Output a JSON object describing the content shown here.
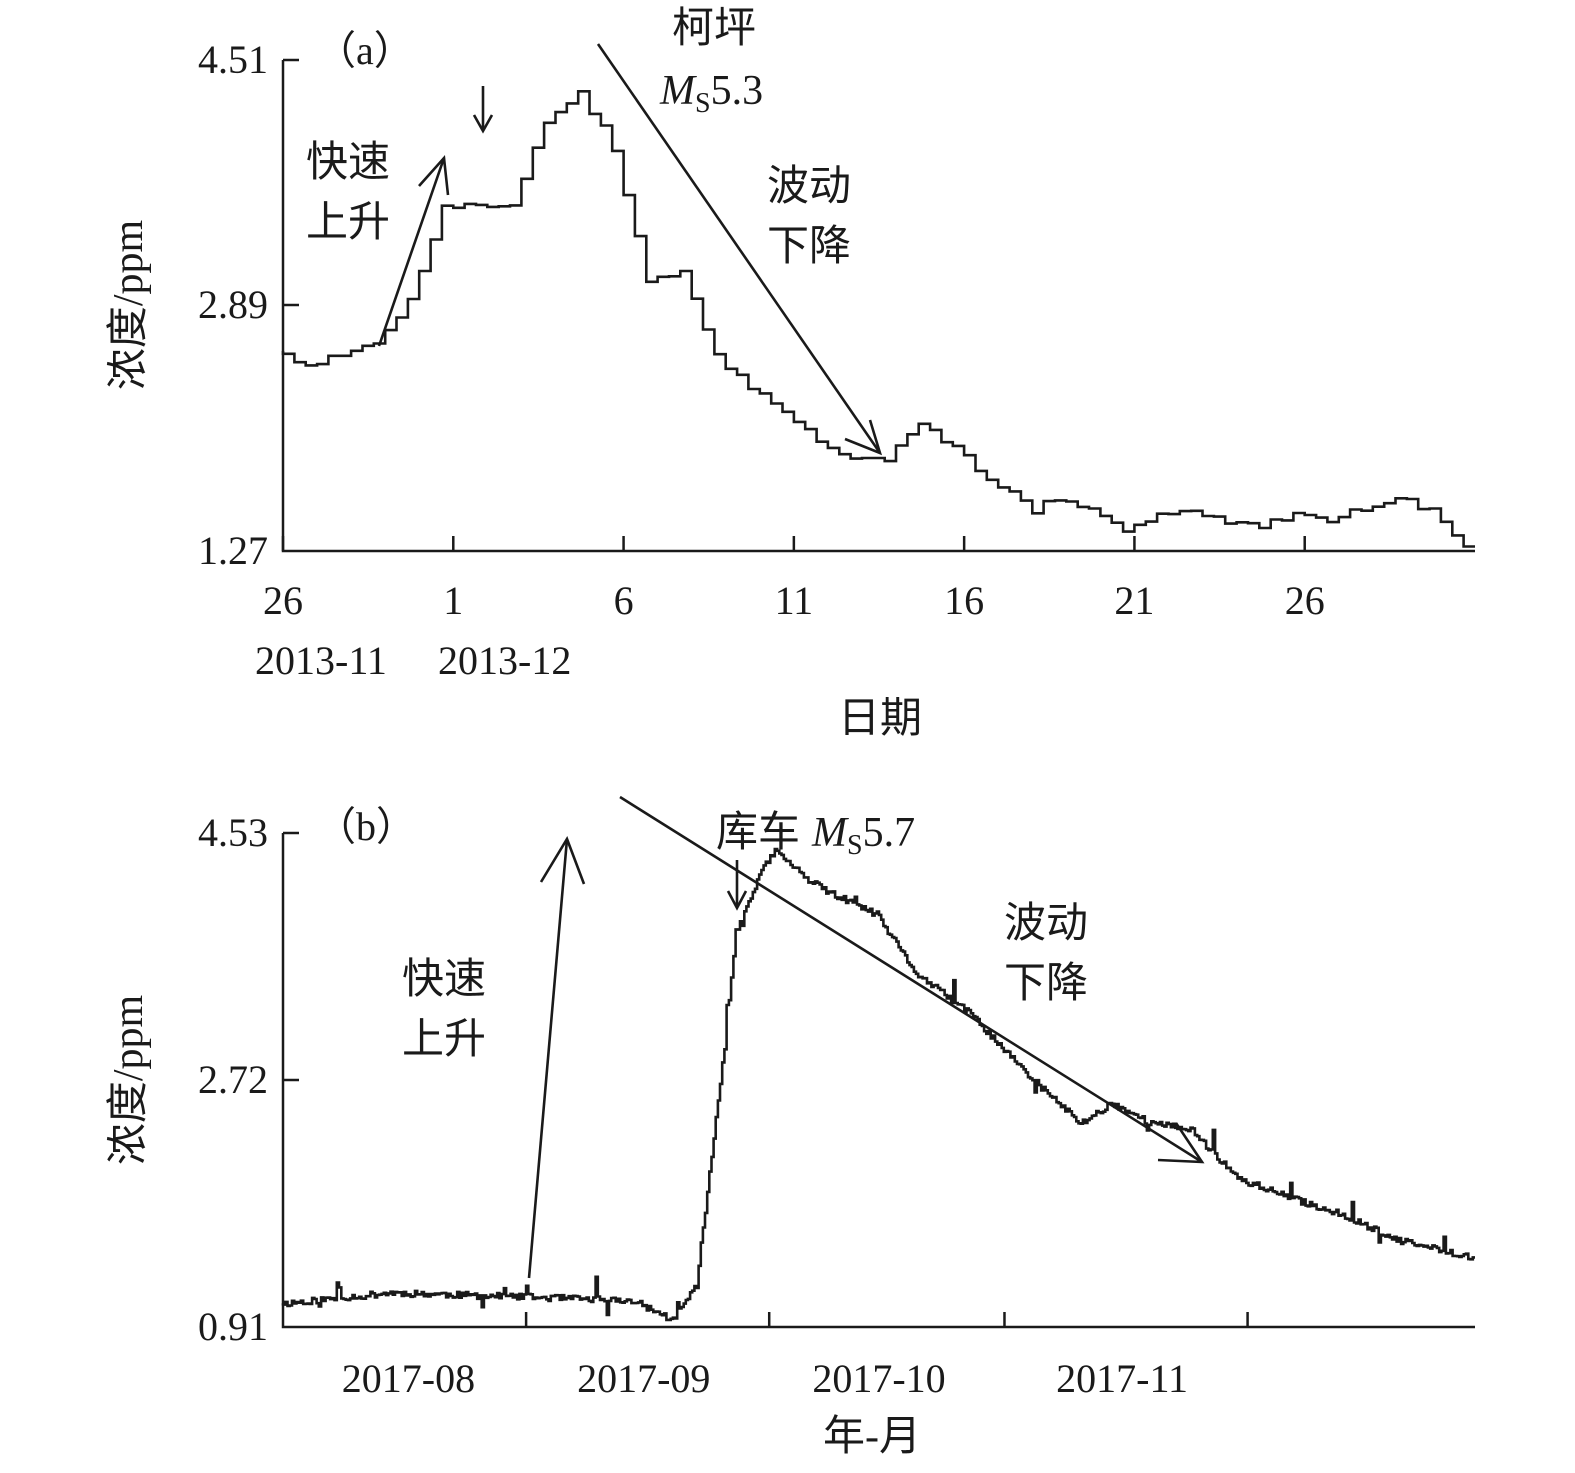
{
  "chart_data": [
    {
      "type": "line",
      "panel_label": "（a）",
      "ylabel": "浓度/ppm",
      "xlabel": "日期",
      "yticks": [
        "4.51",
        "2.89",
        "1.27"
      ],
      "ylim": [
        1.27,
        4.51
      ],
      "xticks": [
        "26",
        "1",
        "6",
        "11",
        "16",
        "21",
        "26"
      ],
      "month_labels": [
        "2013-11",
        "2013-12"
      ],
      "x_start": "2013-11-26",
      "x_end": "2013-12-31",
      "annotations": {
        "rise": [
          "快速",
          "上升"
        ],
        "quake_name": "柯坪",
        "quake_mag_M": "M",
        "quake_mag_sub": "S",
        "quake_mag_val": "5.3",
        "fall": [
          "波动",
          "下降"
        ]
      },
      "series": [
        {
          "x": [
            "2013-11-26",
            "2013-11-27",
            "2013-11-28",
            "2013-11-29",
            "2013-11-30",
            "2013-12-01",
            "2013-12-02",
            "2013-12-03",
            "2013-12-04",
            "2013-12-05",
            "2013-12-06",
            "2013-12-07",
            "2013-12-08",
            "2013-12-09",
            "2013-12-10",
            "2013-12-11",
            "2013-12-12",
            "2013-12-13",
            "2013-12-14",
            "2013-12-15",
            "2013-12-16",
            "2013-12-17",
            "2013-12-18",
            "2013-12-19",
            "2013-12-20",
            "2013-12-21",
            "2013-12-22",
            "2013-12-23",
            "2013-12-24",
            "2013-12-25",
            "2013-12-26",
            "2013-12-27",
            "2013-12-28",
            "2013-12-29",
            "2013-12-30",
            "2013-12-31"
          ],
          "values": [
            2.6,
            2.5,
            2.56,
            2.64,
            2.92,
            3.55,
            3.55,
            3.55,
            4.1,
            4.3,
            3.9,
            3.05,
            3.1,
            2.56,
            2.35,
            2.2,
            2.0,
            1.87,
            1.88,
            2.1,
            1.95,
            1.75,
            1.6,
            1.62,
            1.55,
            1.4,
            1.5,
            1.53,
            1.47,
            1.43,
            1.52,
            1.48,
            1.55,
            1.63,
            1.53,
            1.3
          ]
        }
      ]
    },
    {
      "type": "line",
      "panel_label": "（b）",
      "ylabel": "浓度/ppm",
      "xlabel": "年-月",
      "yticks": [
        "4.53",
        "2.72",
        "0.91"
      ],
      "ylim": [
        0.91,
        4.53
      ],
      "xticks": [
        "2017-08",
        "2017-09",
        "2017-10",
        "2017-11"
      ],
      "x_start": "2017-07-01",
      "x_end": "2017-11-30",
      "annotations": {
        "rise": [
          "快速",
          "上升"
        ],
        "quake_name": "库车",
        "quake_mag_M": "M",
        "quake_mag_sub": "S",
        "quake_mag_val": "5.7",
        "fall": [
          "波动",
          "下降"
        ]
      },
      "series": [
        {
          "x": [
            "2017-07-01",
            "2017-07-15",
            "2017-08-01",
            "2017-08-15",
            "2017-08-20",
            "2017-08-23",
            "2017-08-26",
            "2017-08-28",
            "2017-08-31",
            "2017-09-02",
            "2017-09-06",
            "2017-09-08",
            "2017-09-15",
            "2017-09-20",
            "2017-09-27",
            "2017-10-04",
            "2017-10-11",
            "2017-10-15",
            "2017-10-20",
            "2017-10-25",
            "2017-10-31",
            "2017-11-07",
            "2017-11-14",
            "2017-11-20",
            "2017-11-30"
          ],
          "values": [
            1.08,
            1.16,
            1.13,
            1.1,
            0.96,
            1.22,
            2.7,
            3.8,
            4.22,
            4.4,
            4.2,
            4.12,
            3.93,
            3.5,
            3.2,
            2.77,
            2.4,
            2.55,
            2.4,
            2.36,
            2.0,
            1.85,
            1.72,
            1.55,
            1.42
          ]
        }
      ]
    }
  ]
}
